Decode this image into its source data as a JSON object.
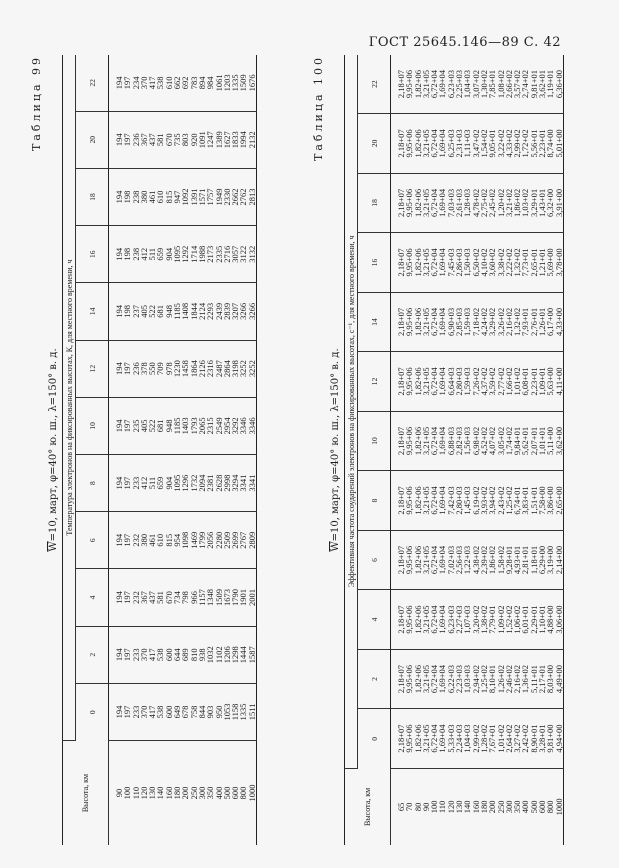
{
  "header": {
    "text": "ГОСТ 25645.146—89 С. 42"
  },
  "tables": [
    {
      "label": "Таблица 99",
      "caption_w": "W",
      "caption_rest": "=10, март, φ=40° ю. ш., λ=150° в. д.",
      "group_header": "Температура электронов на фиксированных высотах, К, для местного времени, ч",
      "height_header": "Высота, км",
      "hours": [
        "0",
        "2",
        "4",
        "6",
        "8",
        "10",
        "12",
        "14",
        "16",
        "18",
        "20",
        "22"
      ],
      "heights": [
        "90",
        "100",
        "110",
        "120",
        "130",
        "140",
        "160",
        "180",
        "200",
        "250",
        "300",
        "350",
        "400",
        "500",
        "600",
        "800",
        "1000"
      ],
      "columns": [
        [
          "194",
          "197",
          "233",
          "370",
          "417",
          "538",
          "600",
          "649",
          "678",
          "758",
          "844",
          "903",
          "950",
          "1053",
          "1158",
          "1335",
          "1511"
        ],
        [
          "194",
          "197",
          "233",
          "370",
          "417",
          "538",
          "600",
          "644",
          "689",
          "810",
          "938",
          "1032",
          "1102",
          "1206",
          "1298",
          "1444",
          "1587"
        ],
        [
          "194",
          "197",
          "232",
          "367",
          "437",
          "581",
          "670",
          "734",
          "798",
          "966",
          "1157",
          "1348",
          "1509",
          "1673",
          "1790",
          "1901",
          "2001"
        ],
        [
          "194",
          "197",
          "232",
          "380",
          "461",
          "610",
          "815",
          "954",
          "1098",
          "1469",
          "1799",
          "2056",
          "2280",
          "2509",
          "2699",
          "2767",
          "2809"
        ],
        [
          "194",
          "197",
          "233",
          "412",
          "511",
          "659",
          "904",
          "1095",
          "1296",
          "1732",
          "2094",
          "2381",
          "2628",
          "2998",
          "3294",
          "3341",
          "3341"
        ],
        [
          "194",
          "197",
          "235",
          "405",
          "522",
          "681",
          "948",
          "1185",
          "1403",
          "1793",
          "2065",
          "2315",
          "2549",
          "2954",
          "3292",
          "3346",
          "3346"
        ],
        [
          "194",
          "197",
          "236",
          "378",
          "550",
          "709",
          "978",
          "1230",
          "1458",
          "1864",
          "2126",
          "2316",
          "2487",
          "2864",
          "3198",
          "3252",
          "3252"
        ],
        [
          "194",
          "198",
          "237",
          "405",
          "522",
          "681",
          "948",
          "1185",
          "1408",
          "1844",
          "2124",
          "2293",
          "2439",
          "2839",
          "3207",
          "3266",
          "3266"
        ],
        [
          "194",
          "198",
          "238",
          "412",
          "511",
          "659",
          "904",
          "1095",
          "1292",
          "1714",
          "1988",
          "2173",
          "2335",
          "2716",
          "3057",
          "3122",
          "3132"
        ],
        [
          "194",
          "198",
          "238",
          "380",
          "461",
          "610",
          "815",
          "947",
          "1092",
          "1391",
          "1571",
          "1757",
          "1949",
          "2330",
          "2662",
          "2762",
          "2813"
        ],
        [
          "194",
          "197",
          "236",
          "367",
          "437",
          "581",
          "670",
          "735",
          "803",
          "920",
          "1091",
          "1247",
          "1389",
          "1627",
          "1833",
          "1994",
          "2132"
        ],
        [
          "194",
          "197",
          "234",
          "370",
          "417",
          "538",
          "610",
          "662",
          "692",
          "783",
          "894",
          "984",
          "1061",
          "1203",
          "1335",
          "1509",
          "1676"
        ]
      ]
    },
    {
      "label": "Таблица 100",
      "caption_w": "W",
      "caption_rest": "=10, март, φ=40° ю. ш., λ=150° в. д.",
      "group_header": "Эффективная частота соударений электронов на фиксированных высотах, с⁻¹, для местного времени, ч",
      "height_header": "Высота, км",
      "hours": [
        "0",
        "2",
        "4",
        "6",
        "8",
        "10",
        "12",
        "14",
        "16",
        "18",
        "20",
        "22"
      ],
      "heights": [
        "65",
        "70",
        "80",
        "90",
        "100",
        "110",
        "120",
        "130",
        "140",
        "160",
        "180",
        "200",
        "250",
        "300",
        "350",
        "400",
        "500",
        "600",
        "800",
        "1000"
      ],
      "columns": [
        [
          "2,18+07",
          "9,95+06",
          "1,82+06",
          "3,21+05",
          "6,72+04",
          "1,69+04",
          "5,33+03",
          "2,24+03",
          "1,04+03",
          "2,99+02",
          "1,28+02",
          "7,67+01",
          "1,01+02",
          "2,64+02",
          "3,27+02",
          "2,42+02",
          "8,90+01",
          "3,28+01",
          "9,81+00",
          "4,94+00"
        ],
        [
          "2,18+07",
          "9,95+06",
          "1,82+06",
          "3,21+05",
          "6,72+04",
          "1,69+04",
          "6,22+03",
          "2,23+03",
          "1,03+03",
          "2,94+02",
          "1,25+02",
          "8,10+01",
          "1,26+02",
          "2,46+02",
          "2,16+02",
          "1,36+02",
          "5,11+01",
          "2,17+01",
          "8,03+00",
          "4,49+00"
        ],
        [
          "2,18+07",
          "9,95+06",
          "1,82+06",
          "3,21+05",
          "6,72+04",
          "1,69+04",
          "6,23+03",
          "2,27+03",
          "1,07+03",
          "3,20+02",
          "1,38+02",
          "7,79+01",
          "1,09+02",
          "1,52+02",
          "1,06+02",
          "6,01+01",
          "2,29+01",
          "1,10+01",
          "4,88+00",
          "3,06+00"
        ],
        [
          "2,18+07",
          "9,95+06",
          "1,82+06",
          "3,21+05",
          "6,72+04",
          "1,69+04",
          "7,02+03",
          "2,56+03",
          "1,22+03",
          "4,38+02",
          "2,39+02",
          "1,86+02",
          "1,58+02",
          "9,28+01",
          "4,93+01",
          "2,81+01",
          "1,18+01",
          "6,29+00",
          "3,19+00",
          "2,14+00"
        ],
        [
          "2,18+07",
          "9,95+06",
          "1,82+06",
          "3,21+05",
          "6,72+04",
          "1,69+04",
          "7,42+03",
          "2,80+03",
          "1,45+03",
          "6,19+02",
          "3,93+02",
          "3,94+02",
          "2,43+02",
          "1,25+02",
          "6,74+01",
          "3,83+01",
          "1,51+01",
          "7,58+00",
          "3,86+00",
          "2,65+00"
        ],
        [
          "2,18+07",
          "9,95+06",
          "1,82+06",
          "3,21+05",
          "6,72+04",
          "1,69+04",
          "6,88+03",
          "2,82+03",
          "1,56+03",
          "6,98+02",
          "4,52+02",
          "4,07+02",
          "3,05+02",
          "1,74+02",
          "9,84+01",
          "5,62+01",
          "2,07+01",
          "1,01+01",
          "5,11+00",
          "3,62+00"
        ],
        [
          "2,18+07",
          "9,95+06",
          "1,82+06",
          "3,21+05",
          "6,72+04",
          "1,69+04",
          "6,64+03",
          "2,80+03",
          "1,59+03",
          "7,26+02",
          "4,37+02",
          "3,59+02",
          "2,77+02",
          "1,66+02",
          "1,01+02",
          "6,08+01",
          "2,23+01",
          "1,09+01",
          "5,63+00",
          "4,11+00"
        ],
        [
          "2,18+07",
          "9,95+06",
          "1,82+06",
          "3,21+05",
          "6,72+04",
          "1,69+04",
          "6,90+03",
          "2,85+03",
          "1,59+03",
          "7,18+02",
          "4,24+02",
          "3,29+02",
          "3,26+02",
          "2,16+02",
          "1,32+02",
          "7,93+01",
          "2,76+01",
          "1,26+01",
          "6,17+00",
          "4,33+00"
        ],
        [
          "2,18+07",
          "9,95+06",
          "1,82+06",
          "3,21+05",
          "6,72+04",
          "1,69+04",
          "7,45+03",
          "2,86+03",
          "1,50+03",
          "6,50+02",
          "4,10+02",
          "3,60+02",
          "3,38+02",
          "2,22+02",
          "1,32+02",
          "7,73+01",
          "2,65+01",
          "1,21+01",
          "5,69+00",
          "3,78+00"
        ],
        [
          "2,18+07",
          "9,95+06",
          "1,82+06",
          "3,21+05",
          "6,72+04",
          "1,69+04",
          "7,03+03",
          "2,61+03",
          "1,28+03",
          "4,78+02",
          "2,75+02",
          "2,45+02",
          "1,20+02",
          "3,21+02",
          "1,86+02",
          "1,03+02",
          "3,29+01",
          "1,43+01",
          "6,32+00",
          "3,91+00"
        ],
        [
          "2,18+07",
          "9,95+06",
          "1,82+06",
          "3,21+05",
          "6,72+04",
          "1,69+04",
          "6,25+03",
          "2,31+03",
          "1,11+03",
          "3,47+02",
          "1,54+02",
          "9,05+01",
          "3,22+02",
          "4,33+02",
          "2,99+02",
          "1,72+02",
          "5,56+01",
          "2,23+01",
          "8,74+00",
          "5,01+00"
        ],
        [
          "2,18+07",
          "9,95+06",
          "1,82+06",
          "3,21+05",
          "6,72+04",
          "1,69+04",
          "6,23+03",
          "2,25+03",
          "1,04+03",
          "3,07+02",
          "1,30+02",
          "7,85+01",
          "1,08+02",
          "2,66+02",
          "3,57+02",
          "2,74+02",
          "9,81+01",
          "3,62+01",
          "1,19+01",
          "6,36+00"
        ]
      ]
    }
  ]
}
